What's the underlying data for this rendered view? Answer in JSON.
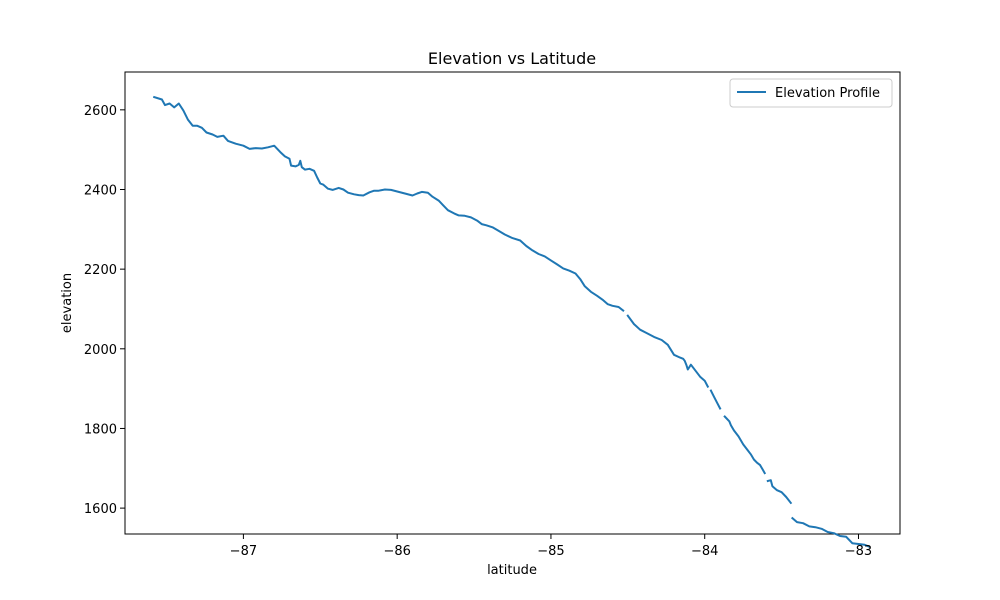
{
  "chart_data": {
    "type": "line",
    "title": "Elevation vs Latitude",
    "xlabel": "latitude",
    "ylabel": "elevation",
    "xlim": [
      -87.77,
      -82.73
    ],
    "ylim": [
      1535,
      2695
    ],
    "xticks": [
      -87,
      -86,
      -85,
      -84,
      -83
    ],
    "xtick_labels": [
      "−87",
      "−86",
      "−85",
      "−84",
      "−83"
    ],
    "yticks": [
      1600,
      1800,
      2000,
      2200,
      2400,
      2600
    ],
    "ytick_labels": [
      "1600",
      "1800",
      "2000",
      "2200",
      "2400",
      "2600"
    ],
    "grid": false,
    "legend_position": "top-right",
    "colors": {
      "series": "#1f77b4"
    },
    "series": [
      {
        "name": "Elevation Profile",
        "segments": [
          [
            [
              -87.58,
              2632
            ],
            [
              -87.53,
              2626
            ],
            [
              -87.51,
              2612
            ],
            [
              -87.48,
              2616
            ],
            [
              -87.45,
              2606
            ],
            [
              -87.42,
              2616
            ],
            [
              -87.39,
              2598
            ],
            [
              -87.36,
              2575
            ],
            [
              -87.33,
              2560
            ],
            [
              -87.3,
              2560
            ],
            [
              -87.27,
              2555
            ],
            [
              -87.24,
              2543
            ],
            [
              -87.2,
              2538
            ],
            [
              -87.17,
              2532
            ],
            [
              -87.13,
              2535
            ],
            [
              -87.1,
              2522
            ],
            [
              -87.05,
              2515
            ],
            [
              -87.0,
              2510
            ],
            [
              -86.96,
              2502
            ],
            [
              -86.92,
              2504
            ],
            [
              -86.88,
              2503
            ],
            [
              -86.84,
              2506
            ],
            [
              -86.8,
              2510
            ],
            [
              -86.76,
              2494
            ],
            [
              -86.73,
              2483
            ],
            [
              -86.7,
              2477
            ],
            [
              -86.69,
              2460
            ],
            [
              -86.66,
              2458
            ],
            [
              -86.64,
              2462
            ],
            [
              -86.63,
              2472
            ],
            [
              -86.62,
              2456
            ],
            [
              -86.6,
              2450
            ],
            [
              -86.57,
              2452
            ],
            [
              -86.54,
              2447
            ],
            [
              -86.52,
              2430
            ],
            [
              -86.5,
              2415
            ],
            [
              -86.48,
              2412
            ],
            [
              -86.45,
              2402
            ],
            [
              -86.42,
              2399
            ],
            [
              -86.38,
              2404
            ],
            [
              -86.35,
              2400
            ],
            [
              -86.32,
              2392
            ],
            [
              -86.28,
              2388
            ],
            [
              -86.25,
              2386
            ],
            [
              -86.22,
              2385
            ],
            [
              -86.18,
              2393
            ],
            [
              -86.15,
              2397
            ],
            [
              -86.12,
              2397
            ],
            [
              -86.08,
              2400
            ],
            [
              -86.04,
              2399
            ],
            [
              -86.0,
              2395
            ],
            [
              -85.95,
              2390
            ],
            [
              -85.9,
              2385
            ],
            [
              -85.87,
              2390
            ],
            [
              -85.84,
              2394
            ],
            [
              -85.8,
              2392
            ],
            [
              -85.77,
              2382
            ],
            [
              -85.73,
              2372
            ],
            [
              -85.7,
              2360
            ],
            [
              -85.67,
              2348
            ],
            [
              -85.63,
              2340
            ],
            [
              -85.6,
              2335
            ],
            [
              -85.56,
              2334
            ],
            [
              -85.52,
              2330
            ],
            [
              -85.48,
              2322
            ],
            [
              -85.45,
              2313
            ],
            [
              -85.42,
              2310
            ],
            [
              -85.38,
              2305
            ],
            [
              -85.34,
              2296
            ],
            [
              -85.3,
              2287
            ],
            [
              -85.25,
              2278
            ],
            [
              -85.2,
              2272
            ],
            [
              -85.16,
              2258
            ],
            [
              -85.12,
              2247
            ],
            [
              -85.08,
              2238
            ],
            [
              -85.04,
              2232
            ],
            [
              -85.0,
              2222
            ],
            [
              -84.96,
              2212
            ],
            [
              -84.92,
              2202
            ],
            [
              -84.88,
              2196
            ],
            [
              -84.84,
              2189
            ],
            [
              -84.81,
              2175
            ],
            [
              -84.78,
              2157
            ],
            [
              -84.74,
              2143
            ],
            [
              -84.7,
              2133
            ],
            [
              -84.66,
              2122
            ],
            [
              -84.63,
              2112
            ],
            [
              -84.6,
              2108
            ],
            [
              -84.56,
              2105
            ],
            [
              -84.53,
              2096
            ]
          ],
          [
            [
              -84.5,
              2083
            ],
            [
              -84.46,
              2062
            ],
            [
              -84.42,
              2048
            ],
            [
              -84.38,
              2040
            ],
            [
              -84.33,
              2030
            ],
            [
              -84.28,
              2022
            ],
            [
              -84.24,
              2010
            ],
            [
              -84.2,
              1985
            ],
            [
              -84.16,
              1978
            ],
            [
              -84.14,
              1975
            ],
            [
              -84.13,
              1970
            ],
            [
              -84.12,
              1960
            ],
            [
              -84.11,
              1948
            ],
            [
              -84.09,
              1960
            ],
            [
              -84.06,
              1945
            ],
            [
              -84.03,
              1930
            ],
            [
              -84.0,
              1920
            ],
            [
              -83.98,
              1905
            ]
          ],
          [
            [
              -83.96,
              1895
            ],
            [
              -83.94,
              1880
            ],
            [
              -83.92,
              1865
            ],
            [
              -83.9,
              1850
            ]
          ],
          [
            [
              -83.87,
              1830
            ],
            [
              -83.84,
              1818
            ],
            [
              -83.83,
              1808
            ],
            [
              -83.81,
              1795
            ],
            [
              -83.78,
              1780
            ],
            [
              -83.75,
              1760
            ],
            [
              -83.72,
              1745
            ],
            [
              -83.7,
              1735
            ],
            [
              -83.68,
              1722
            ],
            [
              -83.66,
              1714
            ],
            [
              -83.64,
              1708
            ],
            [
              -83.62,
              1695
            ],
            [
              -83.61,
              1688
            ]
          ],
          [
            [
              -83.59,
              1668
            ],
            [
              -83.57,
              1670
            ],
            [
              -83.56,
              1655
            ],
            [
              -83.53,
              1645
            ],
            [
              -83.5,
              1640
            ],
            [
              -83.47,
              1628
            ],
            [
              -83.44,
              1613
            ]
          ],
          [
            [
              -83.43,
              1575
            ],
            [
              -83.4,
              1565
            ],
            [
              -83.36,
              1562
            ],
            [
              -83.32,
              1554
            ],
            [
              -83.28,
              1552
            ],
            [
              -83.24,
              1548
            ],
            [
              -83.2,
              1540
            ],
            [
              -83.16,
              1537
            ],
            [
              -83.12,
              1530
            ],
            [
              -83.08,
              1528
            ],
            [
              -83.04,
              1512
            ],
            [
              -83.0,
              1510
            ],
            [
              -82.96,
              1508
            ],
            [
              -82.93,
              1503
            ]
          ]
        ]
      }
    ]
  }
}
